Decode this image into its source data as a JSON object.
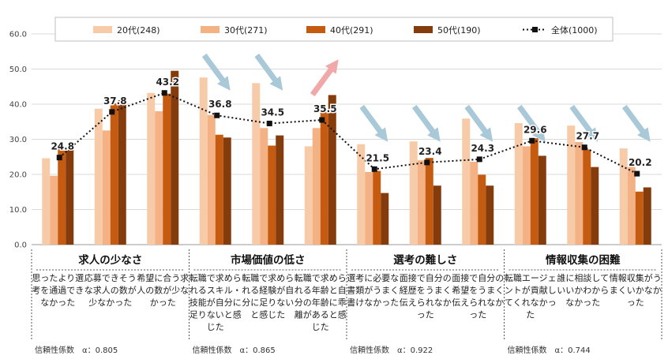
{
  "chart_data": {
    "type": "bar",
    "ylim": [
      0,
      60
    ],
    "yticks": [
      "0.0",
      "10.0",
      "20.0",
      "30.0",
      "40.0",
      "50.0",
      "60.0"
    ],
    "series": [
      {
        "name": "20代(248)",
        "color": "#f8cba8",
        "values": [
          24.6,
          38.7,
          43.2,
          47.6,
          46.0,
          28.0,
          28.6,
          29.4,
          35.9,
          34.6,
          33.9,
          27.4
        ]
      },
      {
        "name": "30代(271)",
        "color": "#f4b183",
        "values": [
          19.6,
          32.5,
          38.0,
          36.9,
          33.2,
          33.2,
          20.7,
          24.0,
          23.6,
          28.0,
          29.2,
          22.1
        ]
      },
      {
        "name": "40代(291)",
        "color": "#c55a11",
        "values": [
          27.5,
          40.2,
          43.0,
          31.3,
          28.2,
          37.8,
          21.0,
          24.7,
          19.9,
          30.3,
          27.1,
          15.1
        ]
      },
      {
        "name": "50代(190)",
        "color": "#843c0c",
        "values": [
          27.4,
          41.1,
          49.5,
          30.5,
          31.1,
          42.6,
          14.7,
          16.8,
          16.8,
          25.3,
          22.1,
          16.3
        ]
      }
    ],
    "line": {
      "name": "全体(1000)",
      "values": [
        24.8,
        37.8,
        43.2,
        36.8,
        34.5,
        35.5,
        21.5,
        23.4,
        24.3,
        29.6,
        27.7,
        20.2
      ],
      "labels": [
        "24.8",
        "37.8",
        "43.2",
        "36.8",
        "34.5",
        "35.5",
        "21.5",
        "23.4",
        "24.3",
        "29.6",
        "27.7",
        "20.2"
      ]
    },
    "categories": [
      "思ったより選考を通過できなかった",
      "応募できそうな求人の数が少なかった",
      "希望に合う求人の数が少なかった",
      "転職で求められるスキル・技能が自分に足りないと感じた",
      "転職で求められる経験が自分に足りないと感じた",
      "転職で求められる年齢と自分の年齢に乖離があると感じた",
      "選考に必要な書類がうまく書けなかった",
      "面接で自分の経歴をうまく伝えられなかった",
      "面接で自分の希望をうまく伝えられなかった",
      "転職エージェントが貢献してくれなかった",
      "誰に相談していいかわからなかった",
      "情報収集がうまくいかなかった"
    ],
    "groups": [
      {
        "title": "求人の少なさ",
        "reliability": "信頼性係数　α：0.805"
      },
      {
        "title": "市場価値の低さ",
        "reliability": "信頼性係数　α：0.865"
      },
      {
        "title": "選考の難しさ",
        "reliability": "信頼性係数　α：0.922"
      },
      {
        "title": "情報収集の困難",
        "reliability": "信頼性係数　α：0.744"
      }
    ],
    "trend_arrows": [
      "",
      "",
      "",
      "down",
      "down",
      "up",
      "down",
      "down",
      "down",
      "down",
      "down",
      "down"
    ],
    "legend_position": "top",
    "grid": true
  }
}
